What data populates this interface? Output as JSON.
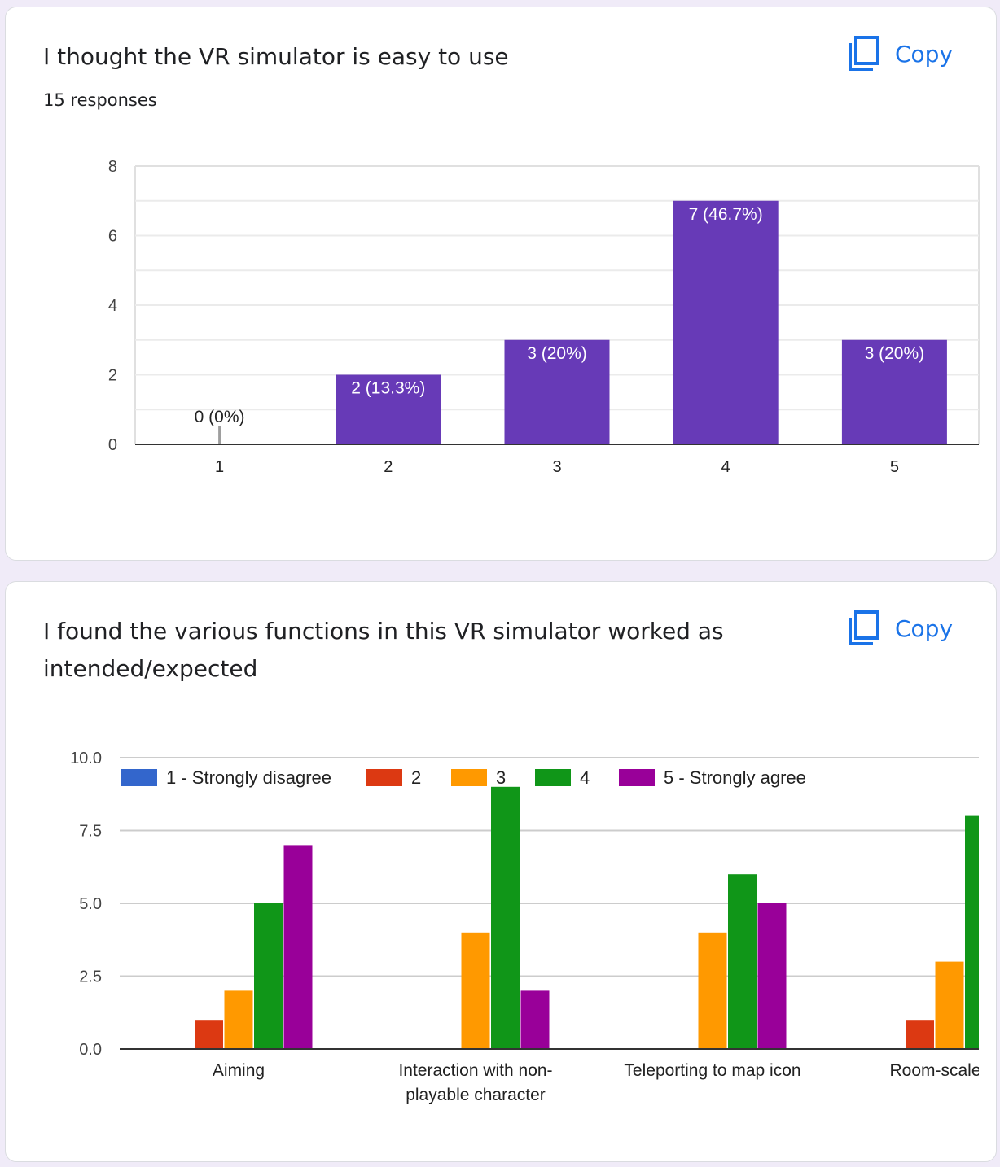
{
  "colors": {
    "accent": "#1a73e8",
    "bar": "#673ab7",
    "grid": "#e0e0e0"
  },
  "cards": [
    {
      "title": "I thought the VR simulator is easy to use",
      "responses": "15 responses",
      "copy": {
        "label": "Copy",
        "icon": "copy-icon"
      }
    },
    {
      "title": "I found the various functions in this VR simulator worked as intended/expected",
      "copy": {
        "label": "Copy",
        "icon": "copy-icon"
      }
    }
  ],
  "chart_data": [
    {
      "type": "bar",
      "categories": [
        "1",
        "2",
        "3",
        "4",
        "5"
      ],
      "values": [
        0,
        2,
        3,
        7,
        3
      ],
      "data_labels": [
        "0 (0%)",
        "2 (13.3%)",
        "3 (20%)",
        "7 (46.7%)",
        "3 (20%)"
      ],
      "yticks": [
        "0",
        "2",
        "4",
        "6",
        "8"
      ],
      "ylim": [
        0,
        8
      ],
      "grid": true,
      "color": "#673ab7"
    },
    {
      "type": "bar",
      "categories": [
        "Aiming",
        "Interaction with non-playable character",
        "Teleporting to map icon",
        "Room-scale mo"
      ],
      "category_lines": [
        [
          "Aiming"
        ],
        [
          "Interaction with non-",
          "playable character"
        ],
        [
          "Teleporting to map icon"
        ],
        [
          "Room-scale mo"
        ]
      ],
      "series": [
        {
          "name": "1 - Strongly disagree",
          "color": "#3366cc",
          "values": [
            0,
            0,
            0,
            0
          ]
        },
        {
          "name": "2",
          "color": "#dc3912",
          "values": [
            1,
            0,
            0,
            1
          ]
        },
        {
          "name": "3",
          "color": "#ff9900",
          "values": [
            2,
            4,
            4,
            3
          ]
        },
        {
          "name": "4",
          "color": "#109618",
          "values": [
            5,
            9,
            6,
            8
          ]
        },
        {
          "name": "5 - Strongly agree",
          "color": "#990099",
          "values": [
            7,
            2,
            5,
            null
          ]
        }
      ],
      "yticks": [
        "0.0",
        "2.5",
        "5.0",
        "7.5",
        "10.0"
      ],
      "ylim": [
        0,
        10
      ],
      "legend": "top",
      "grid": true
    }
  ]
}
